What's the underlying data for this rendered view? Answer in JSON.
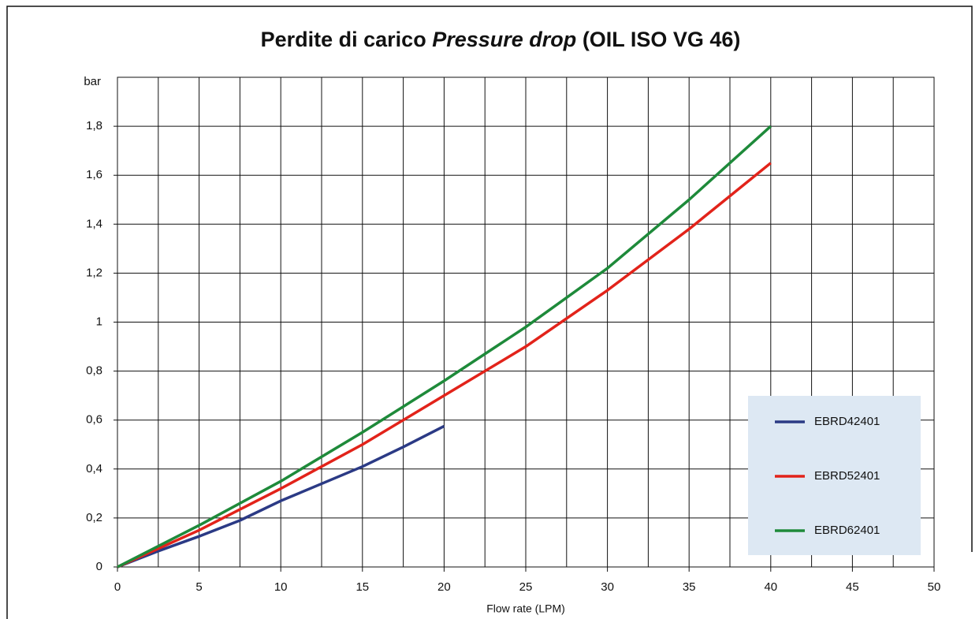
{
  "chart_data": {
    "type": "line",
    "title": "Perdite di carico",
    "title_italic": "Pressure drop",
    "title_suffix": "(OIL ISO VG 46)",
    "x_label": "Flow rate (LPM)",
    "y_label": "bar",
    "xlim": [
      0,
      50
    ],
    "xticks": [
      0,
      5,
      10,
      15,
      20,
      25,
      30,
      35,
      40,
      45,
      50
    ],
    "xminorticks": [
      2.5,
      7.5,
      12.5,
      17.5,
      22.5,
      27.5,
      32.5,
      37.5,
      42.5,
      47.5
    ],
    "ylim": [
      0,
      2
    ],
    "yticks": [
      0,
      {
        "value": 0.2,
        "label": "0,2"
      },
      {
        "value": 0.4,
        "label": "0,4"
      },
      {
        "value": 0.6,
        "label": "0,6"
      },
      {
        "value": 0.8,
        "label": "0,8"
      },
      1,
      {
        "value": 1.2,
        "label": "1,2"
      },
      {
        "value": 1.4,
        "label": "1,4"
      },
      {
        "value": 1.6,
        "label": "1,6"
      },
      {
        "value": 1.8,
        "label": "1,8"
      }
    ],
    "grid": true,
    "series": [
      {
        "name": "EBRD42401",
        "color": "#2b3a85",
        "x": [
          0,
          2.5,
          5,
          7.5,
          10,
          12.5,
          15,
          17.5,
          20
        ],
        "values": [
          0,
          0.065,
          0.125,
          0.19,
          0.27,
          0.34,
          0.41,
          0.49,
          0.575
        ]
      },
      {
        "name": "EBRD52401",
        "color": "#e2231a",
        "x": [
          0,
          5,
          10,
          15,
          20,
          25,
          30,
          35,
          40
        ],
        "values": [
          0,
          0.15,
          0.32,
          0.5,
          0.7,
          0.9,
          1.13,
          1.38,
          1.65
        ]
      },
      {
        "name": "EBRD62401",
        "color": "#1e8a3a",
        "x": [
          0,
          5,
          10,
          15,
          20,
          25,
          30,
          35,
          40
        ],
        "values": [
          0,
          0.17,
          0.35,
          0.55,
          0.76,
          0.98,
          1.22,
          1.5,
          1.8
        ]
      }
    ]
  }
}
